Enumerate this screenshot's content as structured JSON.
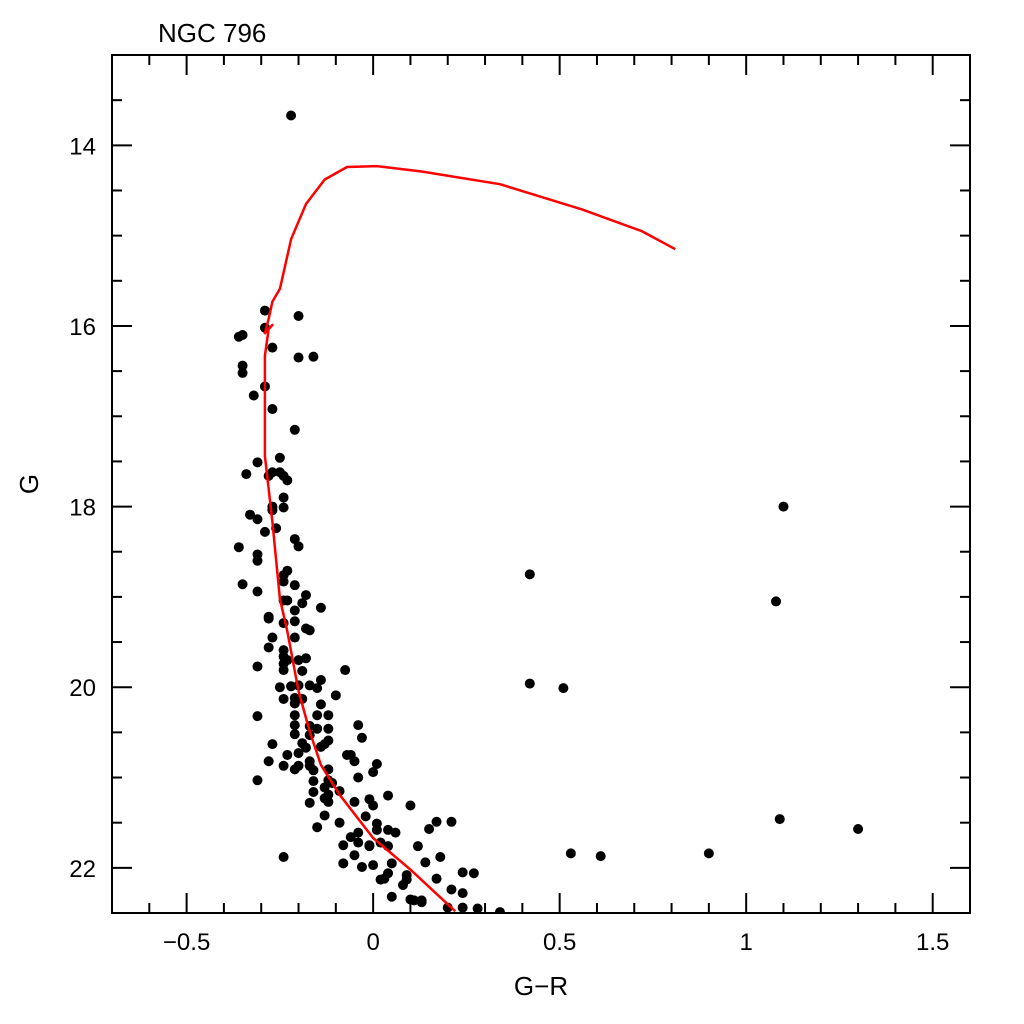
{
  "chart_data": {
    "type": "scatter",
    "title": "NGC 796",
    "xlabel": "G−R",
    "ylabel": "G",
    "xlim": [
      -0.7,
      1.6
    ],
    "ylim": [
      22.5,
      13.0
    ],
    "y_inverted": true,
    "xticks": [
      -0.5,
      0,
      0.5,
      1,
      1.5
    ],
    "xtick_labels": [
      "−0.5",
      "0",
      "0.5",
      "1",
      "1.5"
    ],
    "yticks": [
      14,
      16,
      18,
      20,
      22
    ],
    "ytick_labels": [
      "14",
      "16",
      "18",
      "20",
      "22"
    ],
    "x_minor_step": 0.1,
    "y_minor_step": 0.5,
    "grid": false,
    "colors": {
      "points": "#000000",
      "isochrone": "#ff0000"
    },
    "series": [
      {
        "name": "stars",
        "kind": "scatter",
        "points": [
          [
            -0.22,
            13.67
          ],
          [
            -0.29,
            15.83
          ],
          [
            -0.2,
            15.89
          ],
          [
            -0.29,
            16.02
          ],
          [
            -0.36,
            16.12
          ],
          [
            -0.35,
            16.1
          ],
          [
            -0.27,
            16.24
          ],
          [
            -0.2,
            16.35
          ],
          [
            -0.16,
            16.34
          ],
          [
            -0.35,
            16.44
          ],
          [
            -0.35,
            16.52
          ],
          [
            -0.29,
            16.67
          ],
          [
            -0.32,
            16.77
          ],
          [
            -0.27,
            16.92
          ],
          [
            -0.21,
            17.15
          ],
          [
            -0.25,
            17.46
          ],
          [
            -0.31,
            17.51
          ],
          [
            -0.34,
            17.64
          ],
          [
            -0.28,
            17.66
          ],
          [
            -0.27,
            17.62
          ],
          [
            -0.25,
            17.62
          ],
          [
            -0.24,
            17.66
          ],
          [
            -0.23,
            17.71
          ],
          [
            -0.24,
            17.9
          ],
          [
            -0.27,
            18.0
          ],
          [
            -0.24,
            18.01
          ],
          [
            -0.27,
            18.04
          ],
          [
            -0.33,
            18.09
          ],
          [
            -0.31,
            18.14
          ],
          [
            -0.29,
            18.28
          ],
          [
            -0.26,
            18.24
          ],
          [
            -0.36,
            18.45
          ],
          [
            -0.21,
            18.36
          ],
          [
            -0.2,
            18.44
          ],
          [
            -0.31,
            18.53
          ],
          [
            -0.31,
            18.6
          ],
          [
            -0.23,
            18.71
          ],
          [
            -0.24,
            18.76
          ],
          [
            -0.24,
            18.83
          ],
          [
            -0.35,
            18.86
          ],
          [
            -0.31,
            18.94
          ],
          [
            -0.21,
            18.87
          ],
          [
            -0.18,
            18.98
          ],
          [
            -0.24,
            19.04
          ],
          [
            -0.23,
            19.04
          ],
          [
            -0.19,
            19.07
          ],
          [
            -0.14,
            19.12
          ],
          [
            -0.21,
            19.15
          ],
          [
            -0.28,
            19.22
          ],
          [
            -0.28,
            19.24
          ],
          [
            -0.21,
            19.27
          ],
          [
            -0.24,
            19.29
          ],
          [
            -0.18,
            19.35
          ],
          [
            -0.17,
            19.37
          ],
          [
            -0.27,
            19.45
          ],
          [
            -0.21,
            19.45
          ],
          [
            -0.28,
            19.56
          ],
          [
            -0.24,
            19.59
          ],
          [
            -0.24,
            19.66
          ],
          [
            -0.24,
            19.74
          ],
          [
            -0.24,
            19.81
          ],
          [
            -0.23,
            19.7
          ],
          [
            -0.18,
            19.68
          ],
          [
            -0.2,
            19.7
          ],
          [
            -0.31,
            19.77
          ],
          [
            -0.19,
            19.82
          ],
          [
            -0.075,
            19.81
          ],
          [
            -0.14,
            19.92
          ],
          [
            -0.17,
            19.98
          ],
          [
            -0.15,
            20.01
          ],
          [
            -0.2,
            19.98
          ],
          [
            -0.22,
            19.99
          ],
          [
            -0.25,
            20.0
          ],
          [
            -0.1,
            20.09
          ],
          [
            -0.24,
            20.13
          ],
          [
            -0.21,
            20.12
          ],
          [
            -0.19,
            20.13
          ],
          [
            -0.14,
            20.19
          ],
          [
            -0.21,
            20.18
          ],
          [
            -0.31,
            20.32
          ],
          [
            -0.21,
            20.31
          ],
          [
            -0.15,
            20.31
          ],
          [
            -0.12,
            20.31
          ],
          [
            -0.21,
            20.42
          ],
          [
            -0.17,
            20.43
          ],
          [
            -0.15,
            20.46
          ],
          [
            -0.12,
            20.46
          ],
          [
            -0.04,
            20.42
          ],
          [
            -0.21,
            20.52
          ],
          [
            -0.17,
            20.53
          ],
          [
            -0.03,
            20.56
          ],
          [
            -0.12,
            20.59
          ],
          [
            -0.13,
            20.63
          ],
          [
            -0.14,
            20.66
          ],
          [
            -0.27,
            20.63
          ],
          [
            -0.19,
            20.62
          ],
          [
            -0.18,
            20.67
          ],
          [
            -0.2,
            20.73
          ],
          [
            -0.23,
            20.75
          ],
          [
            -0.07,
            20.75
          ],
          [
            -0.06,
            20.75
          ],
          [
            -0.05,
            20.82
          ],
          [
            -0.28,
            20.82
          ],
          [
            -0.17,
            20.82
          ],
          [
            -0.17,
            20.87
          ],
          [
            0.01,
            20.85
          ],
          [
            -0.24,
            20.87
          ],
          [
            -0.21,
            20.91
          ],
          [
            -0.2,
            20.87
          ],
          [
            -0.16,
            20.92
          ],
          [
            -0.12,
            20.91
          ],
          [
            0.0,
            20.94
          ],
          [
            -0.04,
            21.0
          ],
          [
            -0.31,
            21.03
          ],
          [
            -0.16,
            21.04
          ],
          [
            -0.12,
            21.03
          ],
          [
            -0.11,
            21.06
          ],
          [
            -0.13,
            21.11
          ],
          [
            -0.09,
            21.15
          ],
          [
            -0.16,
            21.16
          ],
          [
            -0.12,
            21.19
          ],
          [
            -0.13,
            21.23
          ],
          [
            0.04,
            21.2
          ],
          [
            -0.01,
            21.24
          ],
          [
            -0.12,
            21.27
          ],
          [
            -0.17,
            21.28
          ],
          [
            -0.05,
            21.27
          ],
          [
            0.0,
            21.31
          ],
          [
            0.1,
            21.31
          ],
          [
            -0.13,
            21.42
          ],
          [
            -0.02,
            21.43
          ],
          [
            0.17,
            21.49
          ],
          [
            0.21,
            21.49
          ],
          [
            -0.09,
            21.5
          ],
          [
            0.01,
            21.51
          ],
          [
            -0.15,
            21.55
          ],
          [
            0.15,
            21.57
          ],
          [
            0.01,
            21.58
          ],
          [
            0.04,
            21.58
          ],
          [
            0.06,
            21.61
          ],
          [
            -0.04,
            21.61
          ],
          [
            -0.06,
            21.66
          ],
          [
            -0.08,
            21.75
          ],
          [
            -0.04,
            21.72
          ],
          [
            -0.01,
            21.75
          ],
          [
            -0.01,
            21.76
          ],
          [
            0.02,
            21.72
          ],
          [
            0.04,
            21.76
          ],
          [
            0.12,
            21.76
          ],
          [
            -0.24,
            21.88
          ],
          [
            -0.05,
            21.86
          ],
          [
            0.18,
            21.88
          ],
          [
            0.05,
            21.95
          ],
          [
            0.14,
            21.94
          ],
          [
            -0.08,
            21.95
          ],
          [
            -0.03,
            21.99
          ],
          [
            0.0,
            21.97
          ],
          [
            0.04,
            22.06
          ],
          [
            0.02,
            22.13
          ],
          [
            0.03,
            22.12
          ],
          [
            0.09,
            22.08
          ],
          [
            0.09,
            22.13
          ],
          [
            0.08,
            22.19
          ],
          [
            0.17,
            22.12
          ],
          [
            0.24,
            22.05
          ],
          [
            0.27,
            22.06
          ],
          [
            0.21,
            22.24
          ],
          [
            0.24,
            22.28
          ],
          [
            0.05,
            22.32
          ],
          [
            0.1,
            22.35
          ],
          [
            0.11,
            22.36
          ],
          [
            0.13,
            22.36
          ],
          [
            0.13,
            22.38
          ],
          [
            0.2,
            22.44
          ],
          [
            0.24,
            22.44
          ],
          [
            0.28,
            22.45
          ],
          [
            0.34,
            22.49
          ],
          [
            0.42,
            18.75
          ],
          [
            0.42,
            19.96
          ],
          [
            0.51,
            20.01
          ],
          [
            1.1,
            18.0
          ],
          [
            1.08,
            19.05
          ],
          [
            1.09,
            21.46
          ],
          [
            1.3,
            21.57
          ],
          [
            0.53,
            21.84
          ],
          [
            0.61,
            21.87
          ],
          [
            0.9,
            21.84
          ]
        ]
      },
      {
        "name": "isochrone",
        "kind": "line",
        "points": [
          [
            0.22,
            22.48
          ],
          [
            0.1,
            22.02
          ],
          [
            0.0,
            21.67
          ],
          [
            -0.09,
            21.19
          ],
          [
            -0.14,
            20.86
          ],
          [
            -0.17,
            20.49
          ],
          [
            -0.2,
            20.04
          ],
          [
            -0.23,
            19.38
          ],
          [
            -0.25,
            19.02
          ],
          [
            -0.27,
            18.17
          ],
          [
            -0.29,
            17.44
          ],
          [
            -0.29,
            16.88
          ],
          [
            -0.29,
            16.33
          ],
          [
            -0.28,
            16.03
          ],
          [
            -0.27,
            15.99
          ],
          [
            -0.29,
            16.08
          ],
          [
            -0.28,
            15.92
          ],
          [
            -0.27,
            15.73
          ],
          [
            -0.25,
            15.59
          ],
          [
            -0.22,
            15.04
          ],
          [
            -0.18,
            14.65
          ],
          [
            -0.13,
            14.38
          ],
          [
            -0.07,
            14.24
          ],
          [
            0.01,
            14.23
          ],
          [
            0.13,
            14.29
          ],
          [
            0.34,
            14.43
          ],
          [
            0.56,
            14.71
          ],
          [
            0.72,
            14.95
          ],
          [
            0.81,
            15.15
          ]
        ]
      }
    ]
  }
}
